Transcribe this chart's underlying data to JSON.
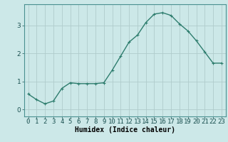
{
  "x": [
    0,
    1,
    2,
    3,
    4,
    5,
    6,
    7,
    8,
    9,
    10,
    11,
    12,
    13,
    14,
    15,
    16,
    17,
    18,
    19,
    20,
    21,
    22,
    23
  ],
  "y": [
    0.55,
    0.35,
    0.2,
    0.3,
    0.75,
    0.95,
    0.92,
    0.92,
    0.92,
    0.95,
    1.4,
    1.9,
    2.4,
    2.65,
    3.1,
    3.4,
    3.45,
    3.35,
    3.05,
    2.8,
    2.45,
    2.05,
    1.65,
    1.65
  ],
  "line_color": "#2e7d6e",
  "marker": "+",
  "marker_size": 3,
  "bg_color": "#cce8e8",
  "grid_color": "#b0cccc",
  "xlabel": "Humidex (Indice chaleur)",
  "xlabel_fontsize": 7,
  "ylabel_ticks": [
    0,
    1,
    2,
    3
  ],
  "xlim": [
    -0.5,
    23.5
  ],
  "ylim": [
    -0.25,
    3.75
  ],
  "tick_fontsize": 6.5,
  "line_width": 1.0
}
